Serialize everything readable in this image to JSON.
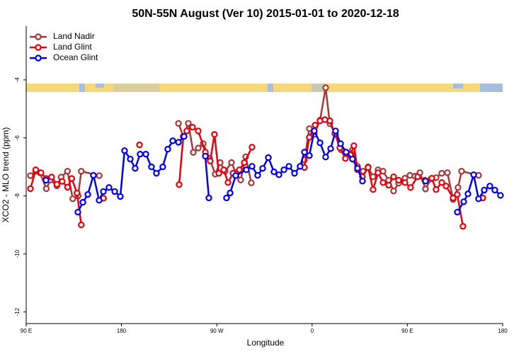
{
  "chart_data": {
    "type": "line",
    "title": "50N-55N August (Ver 10)   2015-01-01 to 2020-12-18",
    "x_label": "Longitude",
    "y_label": "XCO2 - MLO trend (ppm)",
    "xlim": [
      90,
      540
    ],
    "ylim": [
      -12.4,
      -2.15
    ],
    "xticks": [
      {
        "value": 90,
        "label": "90 E"
      },
      {
        "value": 180,
        "label": "180"
      },
      {
        "value": 270,
        "label": "90 W"
      },
      {
        "value": 360,
        "label": "0"
      },
      {
        "value": 450,
        "label": "90 E"
      },
      {
        "value": 540,
        "label": "180"
      }
    ],
    "yticks": [
      -12,
      -10,
      -8,
      -6,
      -4
    ],
    "legend": "top-left",
    "series": [
      {
        "name": "Land Nadir",
        "color": "#a33a3a",
        "x": [
          94,
          99,
          103,
          109,
          113,
          119,
          123,
          129,
          134,
          139,
          142,
          159,
          null,
          233.8,
          238.4,
          243.1,
          247.8,
          252.5,
          257.2,
          263.2,
          268.5,
          273.2,
          277.9,
          283.9,
          287.9,
          292.6,
          297.3,
          302.6,
          null,
          348.7,
          352.8,
          357.4,
          362.1,
          367.5,
          372.8,
          376.8,
          382.2,
          387.5,
          392.9,
          398.2,
          402.9,
          408.2,
          412.9,
          417.6,
          422.3,
          427.0,
          432.3,
          437.0,
          441.7,
          447.7,
          452.4,
          457.1,
          461.8,
          467.1,
          472.4,
          477.1,
          482.5,
          487.8,
          493.2,
          497.8,
          501.2,
          517.2
        ],
        "values": [
          -7.3,
          -7.15,
          -7.2,
          -7.75,
          -7.45,
          -7.65,
          -7.35,
          -7.15,
          -8.1,
          -8.0,
          -7.15,
          -7.3,
          null,
          -5.5,
          -5.95,
          -5.5,
          -6.5,
          -6.35,
          -6.2,
          -6.7,
          -7.25,
          -6.85,
          -7.15,
          -6.85,
          -7.2,
          -7.45,
          -6.65,
          -7.55,
          null,
          -6.98,
          -6.76,
          -5.68,
          -5.88,
          -5.39,
          -4.27,
          -5.51,
          -5.88,
          -6.41,
          -6.54,
          -6.41,
          -6.98,
          -7.15,
          -7.0,
          -7.34,
          -7.1,
          -7.15,
          -7.46,
          -7.83,
          -7.56,
          -7.39,
          -7.29,
          -7.32,
          -7.2,
          -7.76,
          -7.41,
          -7.37,
          -7.22,
          -7.2,
          -8.12,
          -7.71,
          -7.15,
          -7.29
        ]
      },
      {
        "name": "Land Glint",
        "color": "#e8000b",
        "x": [
          94,
          99,
          104,
          109,
          114,
          119,
          124,
          129,
          133,
          138,
          142,
          null,
          163,
          null,
          197,
          null,
          234.4,
          238.4,
          241.7,
          247.1,
          252.5,
          259.2,
          263.8,
          267.8,
          271.9,
          276.6,
          280.6,
          285.3,
          291.3,
          296.0,
          303.3,
          null,
          352.8,
          357.4,
          362.8,
          367.5,
          372.1,
          376.8,
          381.5,
          386.2,
          391.5,
          396.2,
          399.5,
          402.9,
          407.5,
          412.9,
          417.6,
          422.3,
          427.0,
          432.3,
          437.0,
          441.7,
          447.7,
          453.0,
          459.7,
          466.4,
          473.1,
          477.1,
          482.5,
          486.5,
          493.2,
          497.1,
          502.5,
          null,
          521.2
        ],
        "values": [
          -7.75,
          -7.1,
          -7.2,
          -7.4,
          -7.35,
          -7.6,
          -7.5,
          -7.7,
          -7.4,
          -7.9,
          -9.0,
          null,
          -8.08,
          null,
          -6.24,
          null,
          -7.61,
          -5.95,
          -5.76,
          -5.63,
          -5.76,
          -6.49,
          -6.8,
          -5.88,
          -7.22,
          -7.1,
          -7.54,
          -7.22,
          -7.1,
          -6.85,
          -6.32,
          null,
          -7.02,
          -5.98,
          -5.56,
          -5.41,
          -5.37,
          -5.41,
          -5.85,
          -6.34,
          -6.71,
          -6.59,
          -6.27,
          -7.1,
          -7.34,
          -7.02,
          -7.78,
          -7.2,
          -7.54,
          -7.63,
          -7.34,
          -7.46,
          -7.54,
          -7.71,
          -7.34,
          -7.46,
          -7.39,
          -7.78,
          -7.54,
          -7.66,
          -8.07,
          -7.95,
          -9.05,
          null,
          -8.07
        ]
      },
      {
        "name": "Ocean Glint",
        "color": "#0000ee",
        "x": [
          108.7,
          null,
          138.8,
          143.5,
          148.2,
          153.5,
          158.9,
          162.9,
          168.2,
          173.6,
          178.9,
          182.9,
          188.3,
          192.9,
          197.6,
          203.0,
          208.3,
          213.0,
          219.0,
          223.7,
          228.4,
          233.8,
          239.1,
          null,
          259.2,
          262.5,
          null,
          279.2,
          282.6,
          287.9,
          297.9,
          303.3,
          308.6,
          313.3,
          318.7,
          324.0,
          328.7,
          333.4,
          338.1,
          343.4,
          348.7,
          352.8,
          357.4,
          362.1,
          367.5,
          372.8,
          377.5,
          382.2,
          386.9,
          392.2,
          398.2,
          402.9,
          407.6,
          null,
          467.1,
          null,
          497.2,
          503.2,
          507.2,
          512.6,
          517.2,
          522.6,
          527.9,
          532.6,
          537.9
        ],
        "values": [
          -7.46,
          null,
          -8.56,
          -8.22,
          -7.95,
          -7.29,
          -8.15,
          -7.85,
          -7.71,
          -7.85,
          -8.02,
          -6.44,
          -6.73,
          -7.05,
          -6.56,
          -6.56,
          -7.0,
          -7.22,
          -7.0,
          -6.39,
          -6.1,
          -6.15,
          -5.95,
          null,
          -6.63,
          -8.07,
          null,
          -8.07,
          -7.9,
          -7.3,
          -7.1,
          -6.98,
          -7.29,
          -7.05,
          -6.68,
          -7.17,
          -7.27,
          -7.1,
          -6.98,
          -7.22,
          -6.98,
          -6.49,
          -6.61,
          -5.76,
          -6.17,
          -6.66,
          -6.37,
          -5.76,
          -6.2,
          -6.49,
          -6.73,
          -7.05,
          -7.49,
          null,
          -7.49,
          null,
          -8.56,
          -8.2,
          -7.93,
          -7.27,
          -8.1,
          -7.8,
          -7.66,
          -7.8,
          -7.98
        ]
      }
    ]
  }
}
